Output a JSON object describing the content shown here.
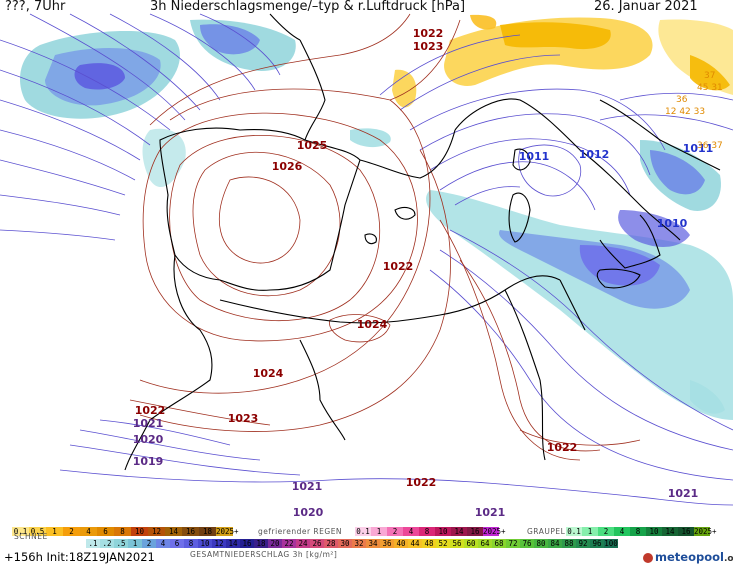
{
  "header": {
    "left": "???, 7Uhr",
    "title": "3h Niederschlagsmenge/–typ & r.Luftdruck [hPa]",
    "date": "26. Januar 2021"
  },
  "isobar_labels": [
    {
      "text": "1022",
      "color": "#8b0000"
    },
    {
      "text": "1023",
      "color": "#8b0000"
    },
    {
      "text": "1025",
      "color": "#8b0000"
    },
    {
      "text": "1026",
      "color": "#8b0000"
    },
    {
      "text": "1022",
      "color": "#8b0000"
    },
    {
      "text": "1024",
      "color": "#8b0000"
    },
    {
      "text": "1024",
      "color": "#8b0000"
    },
    {
      "text": "1023",
      "color": "#8b0000"
    },
    {
      "text": "1022",
      "color": "#8b0000"
    },
    {
      "text": "1022",
      "color": "#8b0000"
    },
    {
      "text": "1022",
      "color": "#8b0000"
    },
    {
      "text": "1021",
      "color": "#5b2a86"
    },
    {
      "text": "1020",
      "color": "#5b2a86"
    },
    {
      "text": "1019",
      "color": "#5b2a86"
    },
    {
      "text": "1021",
      "color": "#5b2a86"
    },
    {
      "text": "1020",
      "color": "#5b2a86"
    },
    {
      "text": "1021",
      "color": "#5b2a86"
    },
    {
      "text": "1021",
      "color": "#5b2a86"
    },
    {
      "text": "1011",
      "color": "#2233cc"
    },
    {
      "text": "1012",
      "color": "#2233cc"
    },
    {
      "text": "1011",
      "color": "#2233cc"
    },
    {
      "text": "1010",
      "color": "#2233cc"
    }
  ],
  "small_values": [
    {
      "text": "36",
      "color": "#e08a00"
    },
    {
      "text": "12 42 33",
      "color": "#e08a00"
    },
    {
      "text": "36 37",
      "color": "#e08a00"
    },
    {
      "text": "45 31",
      "color": "#e08a00"
    },
    {
      "text": "37",
      "color": "#e08a00"
    }
  ],
  "legend": {
    "snow_label": "SCHNEE",
    "snow_values": [
      "0.1",
      "0.5",
      "1",
      "2",
      "4",
      "6",
      "8",
      "10",
      "12",
      "14",
      "16",
      "18",
      "2025+"
    ],
    "snow_colors": [
      "#fde68a",
      "#fcd34d",
      "#fbbf24",
      "#f59e0b",
      "#ea9a0a",
      "#e08a00",
      "#d97706",
      "#c2410c",
      "#b45309",
      "#a16207",
      "#854d0e",
      "#713f12",
      "#d4a017"
    ],
    "freezing_label": "gefrierender REGEN",
    "freezing_values": [
      "0.1",
      "1",
      "2",
      "4",
      "8",
      "10",
      "14",
      "16",
      "2025+"
    ],
    "freezing_colors": [
      "#fbcfe8",
      "#f9a8d4",
      "#f472b6",
      "#ec4899",
      "#db2777",
      "#be185d",
      "#9d174d",
      "#831843",
      "#c026d3"
    ],
    "graupel_label": "GRAUPEL",
    "graupel_values": [
      "0.1",
      "1",
      "2",
      "4",
      "8",
      "10",
      "14",
      "16",
      "2025+"
    ],
    "graupel_colors": [
      "#bbf7d0",
      "#86efac",
      "#4ade80",
      "#22c55e",
      "#16a34a",
      "#15803d",
      "#166534",
      "#14532d",
      "#65a30d"
    ],
    "rain_values": [
      ".1",
      ".2",
      ".5",
      "1",
      "2",
      "4",
      "6",
      "8",
      "10",
      "12",
      "14",
      "16",
      "18",
      "20",
      "22",
      "24",
      "26",
      "28",
      "30",
      "32",
      "34",
      "36",
      "40",
      "44",
      "48",
      "52",
      "56",
      "60",
      "64",
      "68",
      "72",
      "76",
      "80",
      "84",
      "88",
      "92",
      "96",
      "100"
    ],
    "rain_colors": [
      "#bfe8ea",
      "#a5dfe3",
      "#8fd4da",
      "#7ac3d6",
      "#6aa3dc",
      "#6d86e6",
      "#6f70ea",
      "#5d5ee0",
      "#4b4bd2",
      "#3b38c0",
      "#2e2aa8",
      "#241f92",
      "#3a1f8a",
      "#7a2a9a",
      "#a8329c",
      "#c43a8a",
      "#d44a7a",
      "#dd5a6a",
      "#e46a5a",
      "#ea7a4a",
      "#ee8c3c",
      "#f29e30",
      "#f4b028",
      "#f6c224",
      "#f0d020",
      "#e4dc20",
      "#d0e020",
      "#b8e024",
      "#a0dc28",
      "#88d42e",
      "#70cc34",
      "#58c23a",
      "#48b640",
      "#3aa846",
      "#2e9a4c",
      "#248c50",
      "#1c7e52",
      "#167052"
    ],
    "rain_title": "GESAMTNIEDERSCHLAG 3h [kg/m²]"
  },
  "footer": {
    "run": "+156h Init:18Z19JAN2021",
    "brand": "meteopool",
    "brand_tld": ".org"
  }
}
